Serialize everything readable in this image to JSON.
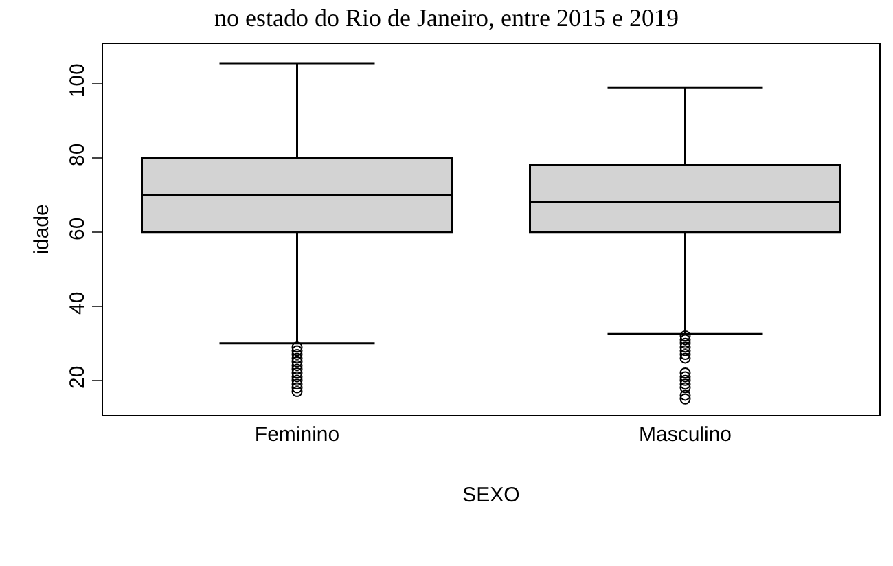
{
  "chart_data": {
    "type": "box",
    "title": "no estado do Rio de Janeiro, entre 2015 e 2019",
    "xlabel": "SEXO",
    "ylabel": "idade",
    "categories": [
      "Feminino",
      "Masculino"
    ],
    "boxes": [
      {
        "low": 30,
        "q1": 60,
        "median": 70,
        "q3": 80,
        "high": 105.5,
        "outliers": [
          29,
          28,
          27,
          26,
          25,
          24,
          23,
          22,
          21,
          20,
          19,
          18,
          17
        ]
      },
      {
        "low": 32.5,
        "q1": 60,
        "median": 68,
        "q3": 78,
        "high": 99,
        "outliers": [
          32,
          31,
          30,
          29,
          28,
          27,
          26,
          22,
          21,
          20,
          19,
          18,
          16,
          15
        ]
      }
    ],
    "color": "#d3d3d3",
    "ylim": [
      10.7,
      110.7
    ],
    "yticks": [
      20,
      40,
      60,
      80,
      100
    ],
    "grid": false
  }
}
